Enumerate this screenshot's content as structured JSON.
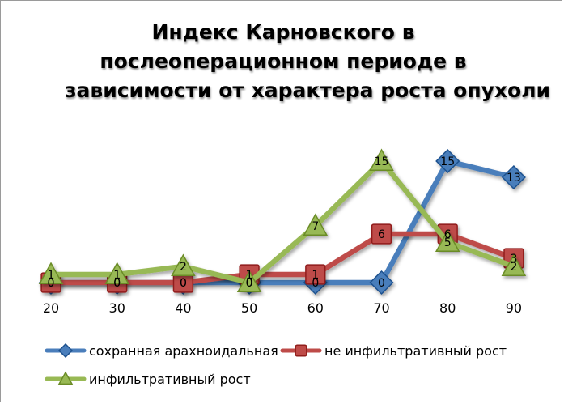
{
  "chart_data": {
    "type": "line",
    "title": "Индекс Карновского в послеоперационном периоде в зависимости от характера роста опухоли",
    "title_lines": [
      "Индекс Карновского в",
      "послеоперационном периоде в",
      "зависимости от характера роста опухоли"
    ],
    "categories": [
      "20",
      "30",
      "40",
      "50",
      "60",
      "70",
      "80",
      "90"
    ],
    "ylim": [
      0,
      16
    ],
    "grid": false,
    "legend_position": "bottom",
    "series": [
      {
        "name": "сохранная арахноидальная",
        "values": [
          0,
          0,
          0,
          0,
          0,
          0,
          15,
          13
        ],
        "color": "#4a7ebb",
        "marker": "diamond"
      },
      {
        "name": "не инфильтративный рост",
        "values": [
          0,
          0,
          0,
          1,
          1,
          6,
          6,
          3
        ],
        "color": "#be4b48",
        "marker": "square"
      },
      {
        "name": "инфильтративный рост",
        "values": [
          1,
          1,
          2,
          0,
          7,
          15,
          5,
          2
        ],
        "color": "#98b954",
        "marker": "triangle"
      }
    ]
  }
}
